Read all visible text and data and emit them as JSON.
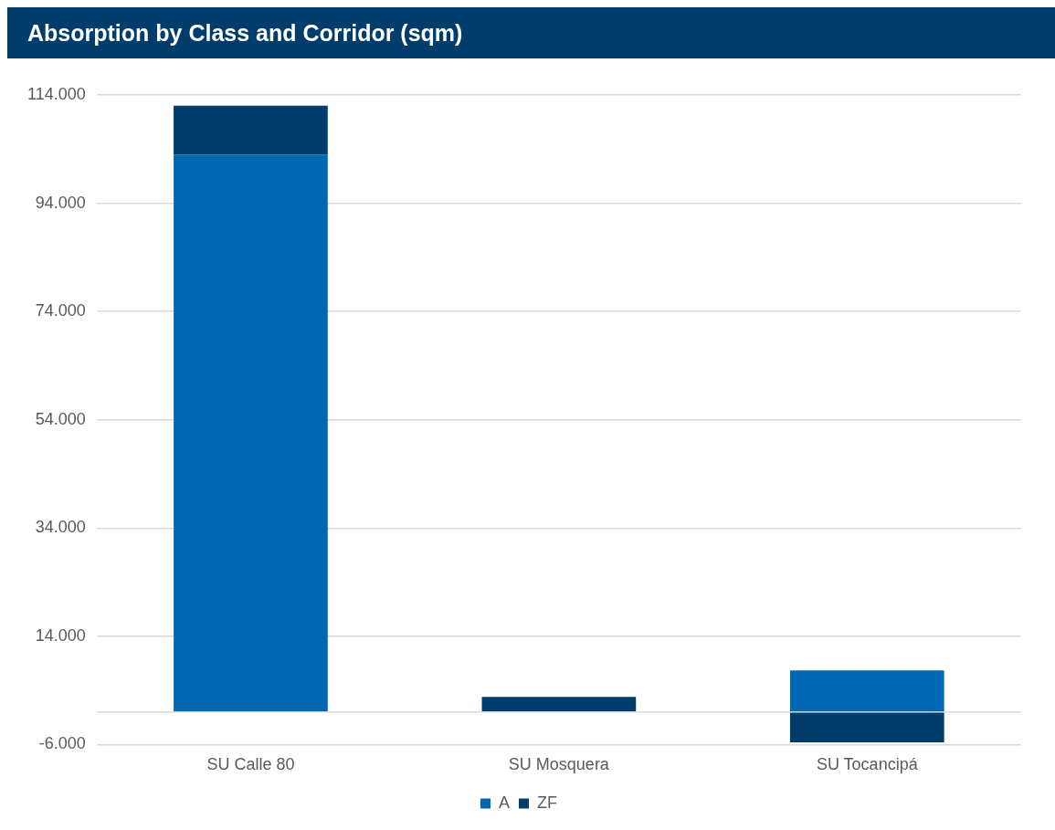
{
  "chart_data": {
    "type": "bar",
    "title": "Absorption by Class and Corridor (sqm)",
    "categories": [
      "SU Calle 80",
      "SU Mosquera",
      "SU Tocancipá"
    ],
    "series": [
      {
        "name": "A",
        "color": "#0068b3",
        "values": [
          103000,
          0,
          7700
        ]
      },
      {
        "name": "ZF",
        "color": "#003d6b",
        "values": [
          9000,
          2800,
          -5600
        ]
      }
    ],
    "stacked": true,
    "ylim": [
      -6000,
      114000
    ],
    "yticks": [
      {
        "value": -6000,
        "label": "-6.000"
      },
      {
        "value": 14000,
        "label": "14.000"
      },
      {
        "value": 34000,
        "label": "34.000"
      },
      {
        "value": 54000,
        "label": "54.000"
      },
      {
        "value": 74000,
        "label": "74.000"
      },
      {
        "value": 94000,
        "label": "94.000"
      },
      {
        "value": 114000,
        "label": "114.000"
      }
    ],
    "ref_lines": [
      {
        "axis": "y",
        "value": 0,
        "color": "#d9d9d9"
      }
    ],
    "grid": "y",
    "legend": "bottom"
  }
}
